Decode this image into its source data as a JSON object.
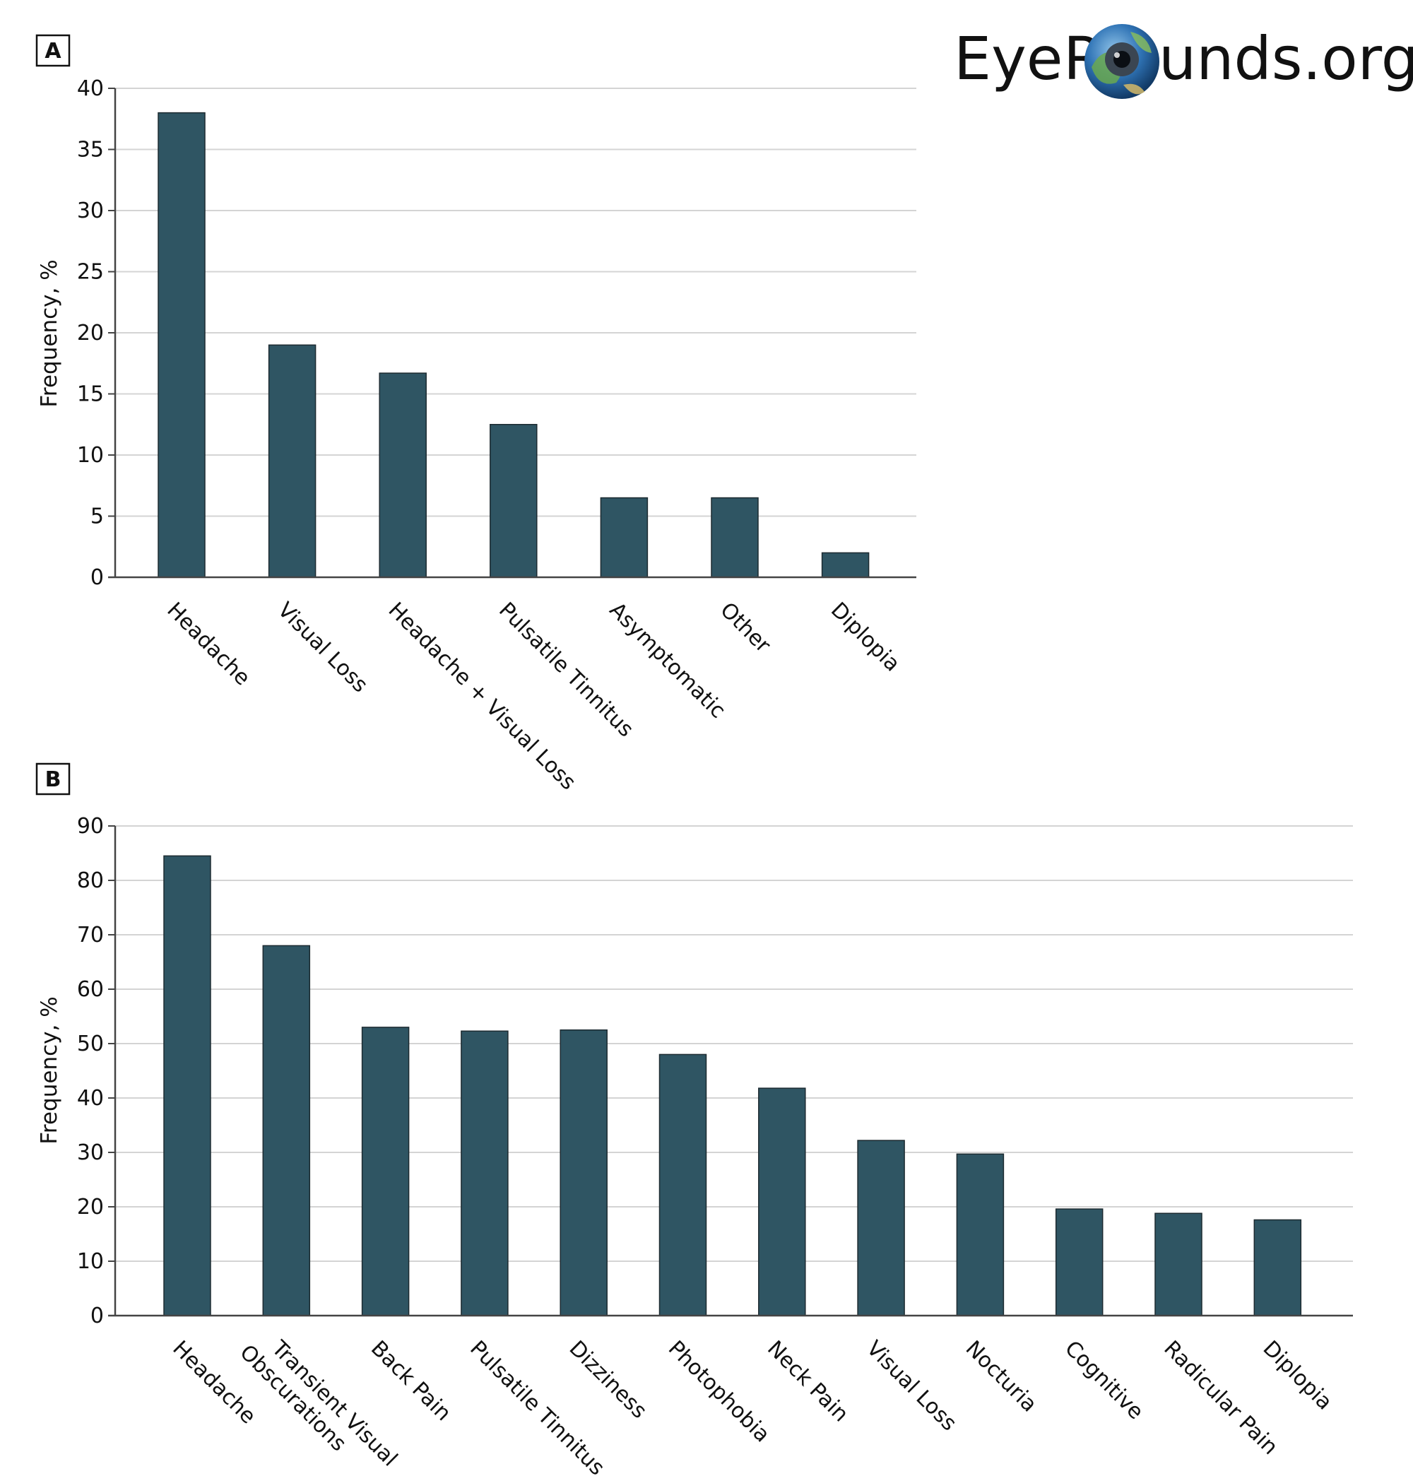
{
  "logo": {
    "part1": "Eye",
    "part2": "R",
    "part3": "unds.org"
  },
  "chart_data": [
    {
      "panel": "A",
      "type": "bar",
      "ylabel": "Frequency, %",
      "ylim": [
        0,
        40
      ],
      "yticks": [
        0,
        5,
        10,
        15,
        20,
        25,
        30,
        35,
        40
      ],
      "grid": true,
      "bar_color": "#2F5563",
      "categories": [
        "Headache",
        "Visual Loss",
        "Headache + Visual Loss",
        "Pulsatile Tinnitus",
        "Asymptomatic",
        "Other",
        "Diplopia"
      ],
      "values": [
        38,
        19,
        16.7,
        12.5,
        6.5,
        6.5,
        2
      ]
    },
    {
      "panel": "B",
      "type": "bar",
      "ylabel": "Frequency, %",
      "ylim": [
        0,
        90
      ],
      "yticks": [
        0,
        10,
        20,
        30,
        40,
        50,
        60,
        70,
        80,
        90
      ],
      "grid": true,
      "bar_color": "#2F5563",
      "categories": [
        "Headache",
        "Transient Visual Obscurations",
        "Back Pain",
        "Pulsatile Tinnitus",
        "Dizziness",
        "Photophobia",
        "Neck Pain",
        "Visual Loss",
        "Nocturia",
        "Cognitive",
        "Radicular Pain",
        "Diplopia"
      ],
      "values": [
        84.5,
        68,
        53,
        52.3,
        52.5,
        48,
        41.8,
        32.2,
        29.7,
        19.6,
        18.8,
        17.6
      ]
    }
  ]
}
